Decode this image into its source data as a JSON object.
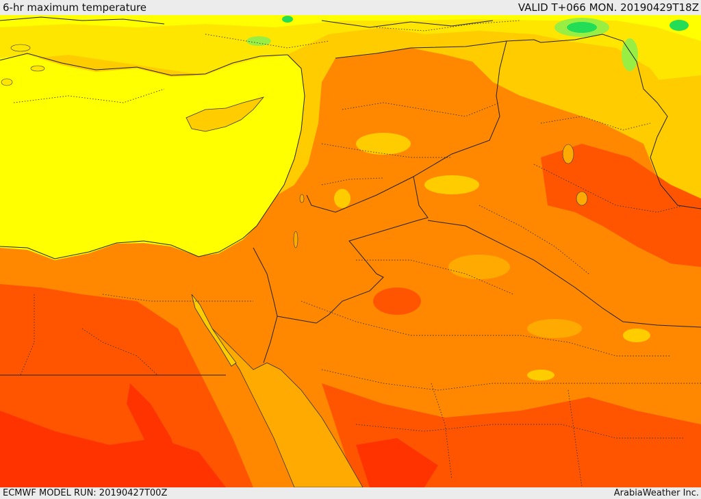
{
  "header": {
    "title": "6-hr maximum temperature",
    "valid_time": "VALID T+066 MON. 20190429T18Z"
  },
  "footer": {
    "model_run": "ECMWF MODEL RUN: 20190427T00Z",
    "credit": "ArabiaWeather Inc."
  },
  "map": {
    "palette": {
      "coolest_green": "#22dd55",
      "light_green": "#99ee44",
      "yellow": "#ffff00",
      "light_gold": "#ffe600",
      "gold": "#ffcc00",
      "amber": "#ffaa00",
      "orange": "#ff8800",
      "dark_orange": "#ff5500",
      "red_orange": "#ff3300"
    }
  }
}
